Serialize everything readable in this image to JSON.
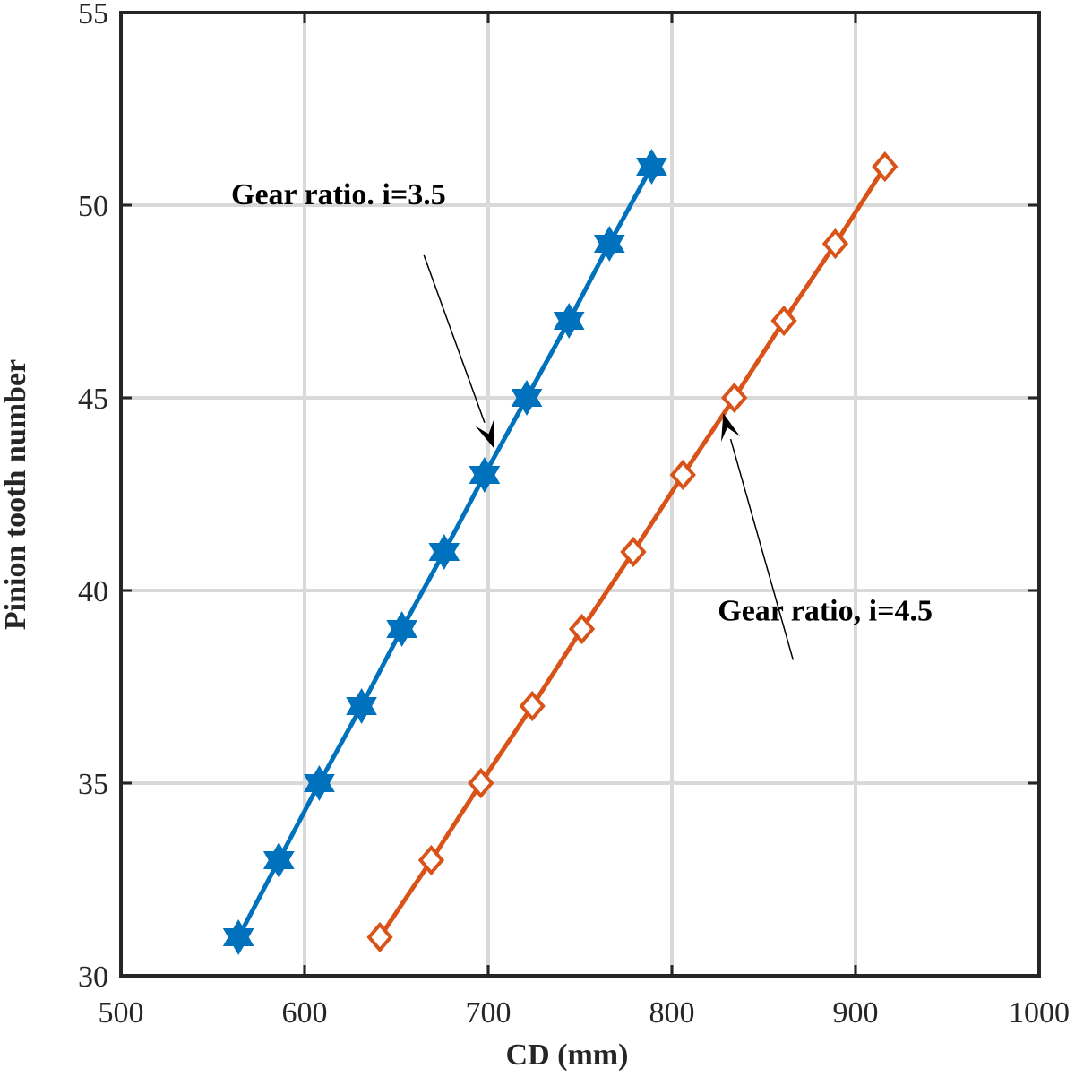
{
  "chart_data": {
    "type": "line",
    "xlabel": "CD (mm)",
    "ylabel": "Pinion tooth number",
    "xlim": [
      500,
      1000
    ],
    "ylim": [
      30,
      55
    ],
    "xticks": [
      500,
      600,
      700,
      800,
      900,
      1000
    ],
    "yticks": [
      30,
      35,
      40,
      45,
      50,
      55
    ],
    "grid": true,
    "series": [
      {
        "marker": "hexagram",
        "color": "#0072BD",
        "x": [
          564,
          586,
          608,
          631,
          653,
          676,
          698,
          721,
          744,
          766,
          789
        ],
        "y": [
          31,
          33,
          35,
          37,
          39,
          41,
          43,
          45,
          47,
          49,
          51
        ]
      },
      {
        "marker": "diamond",
        "color": "#D95319",
        "x": [
          641,
          669,
          696,
          724,
          751,
          779,
          806,
          834,
          861,
          889,
          916
        ],
        "y": [
          31,
          33,
          35,
          37,
          39,
          41,
          43,
          45,
          47,
          49,
          51
        ]
      }
    ],
    "annotations": [
      {
        "text": "Gear ratio. i=3.5",
        "text_at": [
          560,
          50.3
        ],
        "arrow_from": [
          665,
          48.7
        ],
        "arrow_to": [
          703,
          43.7
        ]
      },
      {
        "text": "Gear ratio, i=4.5",
        "text_at": [
          825,
          39.5
        ],
        "arrow_from": [
          866,
          38.2
        ],
        "arrow_to": [
          828,
          44.6
        ]
      }
    ]
  }
}
